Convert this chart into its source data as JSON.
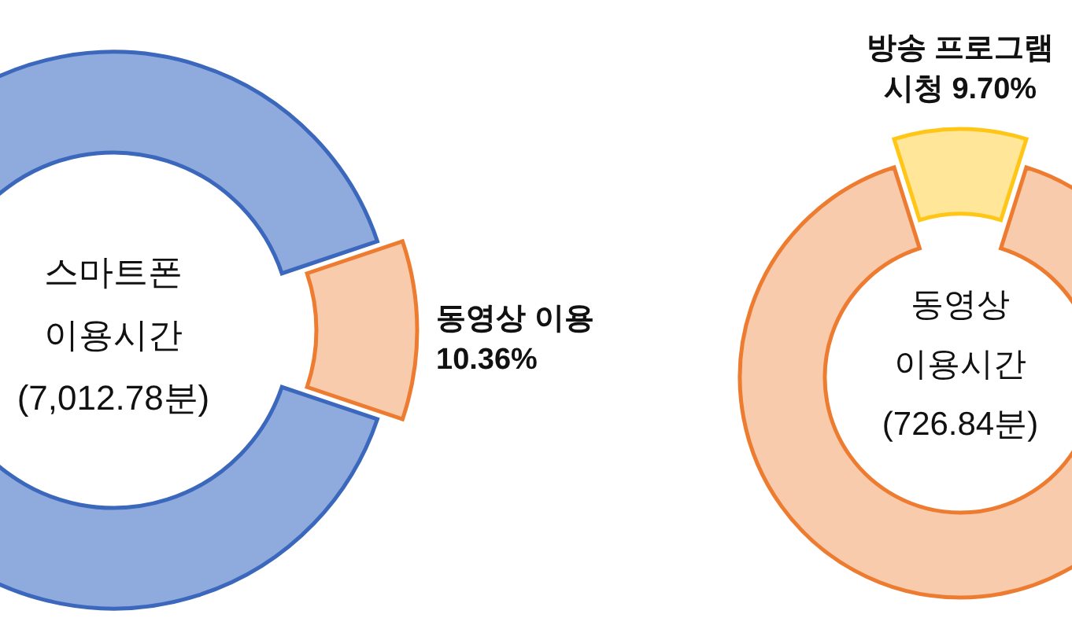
{
  "chart_data": [
    {
      "type": "donut",
      "title": "스마트폰 이용시간 (7,012.78분)",
      "categories": [
        null,
        "동영상 이용"
      ],
      "values": [
        89.64,
        10.36
      ],
      "colors": [
        "#8faadc",
        "#f8cbad"
      ],
      "value_labels": [
        null,
        "10.36%"
      ]
    },
    {
      "type": "donut",
      "title": "동영상 이용시간 (726.84분)",
      "categories": [
        "방송 프로그램 시청",
        null
      ],
      "values": [
        9.7,
        90.3
      ],
      "colors": [
        "#ffe699",
        "#f8cbad"
      ],
      "value_labels": [
        "9.70%",
        null
      ]
    }
  ]
}
